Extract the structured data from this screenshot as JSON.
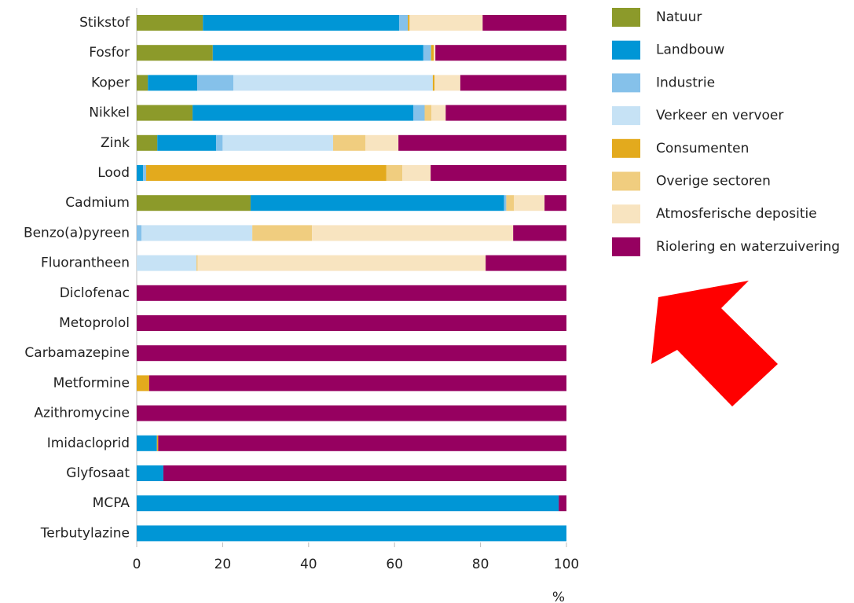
{
  "chart_data": {
    "type": "stacked-bar-horizontal",
    "categories": [
      "Stikstof",
      "Fosfor",
      "Koper",
      "Nikkel",
      "Zink",
      "Lood",
      "Cadmium",
      "Benzo(a)pyreen",
      "Fluorantheen",
      "Diclofenac",
      "Metoprolol",
      "Carbamazepine",
      "Metformine",
      "Azithromycine",
      "Imidacloprid",
      "Glyfosaat",
      "MCPA",
      "Terbutylazine"
    ],
    "series": [
      {
        "name": "Natuur",
        "color": "#8c9a2a",
        "values": [
          15.4,
          17.7,
          2.6,
          13,
          4.8,
          0,
          26.5,
          0,
          0,
          0,
          0,
          0,
          0,
          0,
          0,
          0,
          0,
          0
        ]
      },
      {
        "name": "Landbouw",
        "color": "#0096d6",
        "values": [
          45.7,
          49,
          11.5,
          51.4,
          13.7,
          1.5,
          59,
          0,
          0,
          0,
          0,
          0,
          0,
          0,
          4.7,
          6.2,
          98.2,
          100
        ]
      },
      {
        "name": "Industrie",
        "color": "#85c1ea",
        "values": [
          2,
          1.8,
          8.4,
          2.6,
          1.5,
          0.7,
          0.5,
          1.1,
          0,
          0,
          0,
          0,
          0,
          0,
          0,
          0,
          0,
          0
        ]
      },
      {
        "name": "Verkeer en vervoer",
        "color": "#c6e2f5",
        "values": [
          0,
          0,
          46.4,
          0,
          25.7,
          0,
          0,
          25.8,
          13.9,
          0,
          0,
          0,
          0,
          0,
          0,
          0,
          0,
          0
        ]
      },
      {
        "name": "Consumenten",
        "color": "#e3aa1d",
        "values": [
          0.4,
          0.6,
          0.4,
          0,
          0,
          55.9,
          0,
          0,
          0,
          0,
          0,
          0,
          2.9,
          0,
          0.3,
          0,
          0,
          0
        ]
      },
      {
        "name": "Overige sectoren",
        "color": "#f0cd7f",
        "values": [
          0,
          0,
          0,
          1.6,
          7.5,
          3.7,
          1.8,
          13.9,
          0.3,
          0,
          0,
          0,
          0,
          0,
          0,
          0,
          0,
          0
        ]
      },
      {
        "name": "Atmosferische depositie",
        "color": "#f8e4c0",
        "values": [
          17,
          0.4,
          6,
          3.3,
          7.7,
          6.6,
          7.1,
          46.8,
          67,
          0,
          0,
          0,
          0,
          0,
          0,
          0,
          0,
          0
        ]
      },
      {
        "name": "Riolering en waterzuivering",
        "color": "#960060",
        "values": [
          19.5,
          30.5,
          24.7,
          28.1,
          39.1,
          31.6,
          5.1,
          12.4,
          18.8,
          100,
          100,
          100,
          97.1,
          100,
          95,
          93.8,
          1.8,
          0
        ]
      }
    ],
    "xlim": [
      0,
      100
    ],
    "xticks": [
      0,
      20,
      40,
      60,
      80,
      100
    ],
    "xlabel": "%"
  }
}
